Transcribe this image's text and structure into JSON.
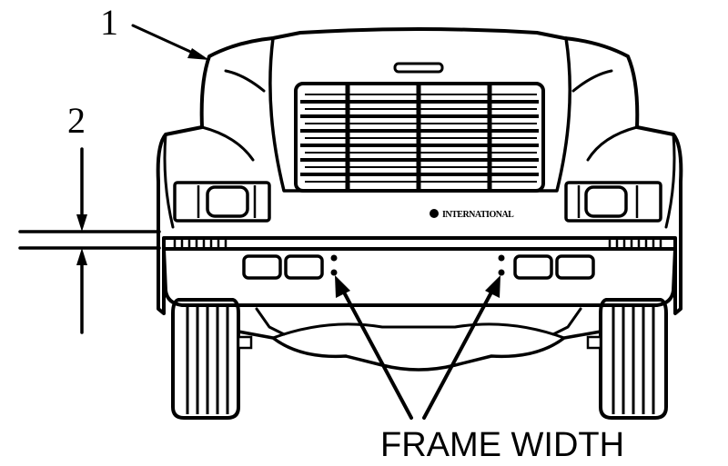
{
  "diagram": {
    "callouts": [
      {
        "id": "1",
        "label": "1"
      },
      {
        "id": "2",
        "label": "2"
      }
    ],
    "annotation": "FRAME WIDTH",
    "brand_badge": "INTERNATIONAL"
  }
}
